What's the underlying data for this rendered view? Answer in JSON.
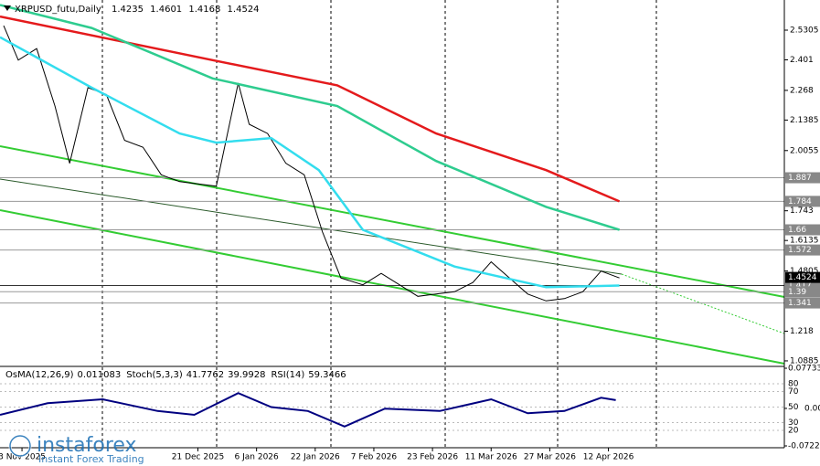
{
  "chart_data": {
    "type": "line",
    "title": "XRPUSD_futu,Daily",
    "open": 1.4235,
    "high": 1.4601,
    "low": 1.4168,
    "close": 1.4524,
    "xlim": [
      "2025-10-28",
      "2026-05-30"
    ],
    "ylim": [
      1.0684,
      2.662
    ],
    "yticks": [
      2.5305,
      2.401,
      2.268,
      2.1385,
      2.0055,
      1.743,
      1.6135,
      1.4805,
      1.218,
      1.0885
    ],
    "levels": [
      1.887,
      1.784,
      1.66,
      1.572,
      1.417,
      1.39,
      1.341
    ],
    "xticks": [
      {
        "value": "2025-11-03",
        "label": "3 Nov 2025"
      },
      {
        "value": "2025-12-21",
        "label": "21 Dec 2025"
      },
      {
        "value": "2026-01-06",
        "label": "6 Jan 2026"
      },
      {
        "value": "2026-01-22",
        "label": "22 Jan 2026"
      },
      {
        "value": "2026-02-07",
        "label": "7 Feb 2026"
      },
      {
        "value": "2026-02-23",
        "label": "23 Feb 2026"
      },
      {
        "value": "2026-03-11",
        "label": "11 Mar 2026"
      },
      {
        "value": "2026-03-27",
        "label": "27 Mar 2026"
      },
      {
        "value": "2026-04-12",
        "label": "12 Apr 2026"
      }
    ],
    "series": [
      {
        "color": "#000000",
        "x": [
          "2025-10-29",
          "2025-11-02",
          "2025-11-07",
          "2025-11-12",
          "2025-11-16",
          "2025-11-21",
          "2025-11-26",
          "2025-12-01",
          "2025-12-06",
          "2025-12-11",
          "2025-12-16",
          "2025-12-26",
          "2026-01-01",
          "2026-01-04",
          "2026-01-09",
          "2026-01-14",
          "2026-01-19",
          "2026-01-24",
          "2026-01-29",
          "2026-02-04",
          "2026-02-09",
          "2026-02-14",
          "2026-02-19",
          "2026-02-24",
          "2026-03-01",
          "2026-03-06",
          "2026-03-11",
          "2026-03-16",
          "2026-03-21",
          "2026-03-26",
          "2026-03-31",
          "2026-04-05",
          "2026-04-10",
          "2026-04-15"
        ],
        "values": [
          2.55,
          2.4,
          2.45,
          2.2,
          1.95,
          2.28,
          2.25,
          2.05,
          2.02,
          1.9,
          1.87,
          1.85,
          2.3,
          2.12,
          2.08,
          1.95,
          1.9,
          1.65,
          1.45,
          1.42,
          1.47,
          1.42,
          1.37,
          1.38,
          1.39,
          1.43,
          1.52,
          1.45,
          1.38,
          1.35,
          1.36,
          1.39,
          1.48,
          1.45
        ]
      },
      {
        "color": "#e41a1c",
        "x": [
          "2025-10-28",
          "2025-12-25",
          "2026-01-28",
          "2026-02-24",
          "2026-03-26",
          "2026-04-15"
        ],
        "values": [
          2.59,
          2.4,
          2.29,
          2.08,
          1.92,
          1.784
        ]
      },
      {
        "color": "#2ecc8f",
        "x": [
          "2025-10-28",
          "2025-11-22",
          "2025-12-25",
          "2026-01-28",
          "2026-02-24",
          "2026-03-26",
          "2026-04-15"
        ],
        "values": [
          2.64,
          2.54,
          2.32,
          2.2,
          1.96,
          1.76,
          1.66
        ]
      },
      {
        "color": "#33ddee",
        "x": [
          "2025-10-28",
          "2025-11-22",
          "2025-12-16",
          "2025-12-26",
          "2026-01-10",
          "2026-01-23",
          "2026-02-04",
          "2026-03-01",
          "2026-03-26",
          "2026-04-15"
        ],
        "values": [
          2.5,
          2.28,
          2.08,
          2.04,
          2.06,
          1.92,
          1.66,
          1.5,
          1.41,
          1.417
        ]
      }
    ],
    "indicators": [
      {
        "name": "OsMA(12,26,9)",
        "values": [
          0.011083
        ]
      },
      {
        "name": "Stoch(5,3,3)",
        "values": [
          41.7762,
          39.9928
        ]
      },
      {
        "name": "RSI(14)",
        "values": [
          59.3466
        ]
      }
    ],
    "osc_ylim": [
      0,
      100
    ],
    "osc_yticks": [
      80,
      70,
      50,
      30,
      20
    ],
    "osma_ylim": [
      -0.07226,
      0.07733
    ],
    "osma_yticks": [
      0.07733,
      {
        "value": 0,
        "label": "0.00"
      },
      -0.07226
    ],
    "rsi": {
      "color": "#000080",
      "x": [
        "2025-10-28",
        "2025-11-10",
        "2025-11-25",
        "2025-12-10",
        "2025-12-20",
        "2026-01-01",
        "2026-01-10",
        "2026-01-20",
        "2026-01-30",
        "2026-02-10",
        "2026-02-25",
        "2026-03-11",
        "2026-03-21",
        "2026-03-31",
        "2026-04-10",
        "2026-04-14"
      ],
      "values": [
        40,
        55,
        60,
        45,
        40,
        68,
        50,
        45,
        25,
        48,
        45,
        60,
        42,
        45,
        62,
        59
      ]
    },
    "brand": "instaforex",
    "tagline": "Instant Forex Trading"
  }
}
